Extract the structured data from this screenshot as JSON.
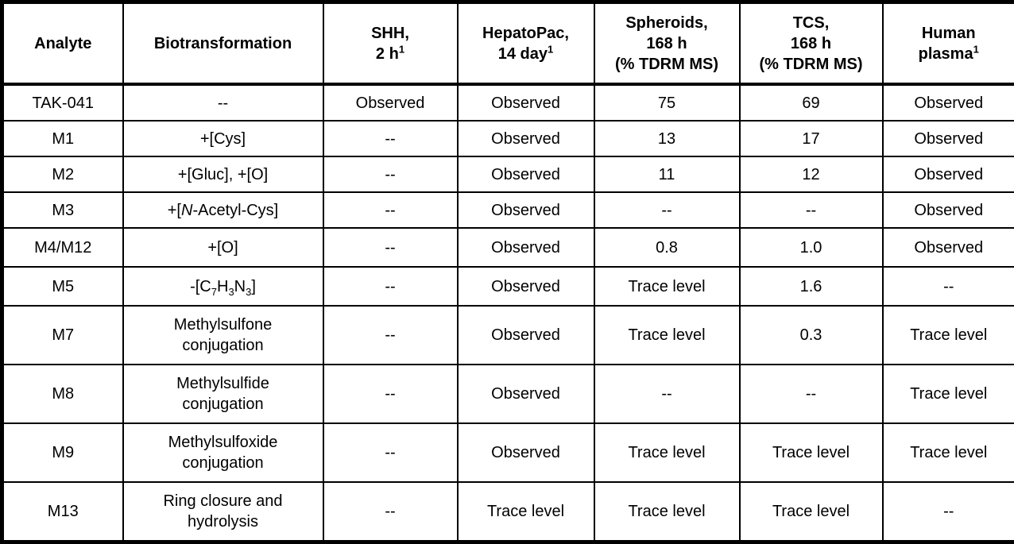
{
  "colors": {
    "background": "#ffffff",
    "border": "#000000",
    "text": "#000000"
  },
  "table": {
    "header": {
      "analyte": "Analyte",
      "biotransformation": "Biotransformation",
      "shh": "SHH,<br>2 h<sup>1</sup>",
      "hepatopac": "HepatoPac,<br>14 day<sup>1</sup>",
      "spheroids": "Spheroids,<br>168 h<br>(% TDRM MS)",
      "tcs": "TCS,<br>168 h<br>(% TDRM MS)",
      "plasma": "Human<br>plasma<sup>1</sup>"
    },
    "rows": [
      {
        "analyte": "TAK-041",
        "biotransformation": "--",
        "shh": "Observed",
        "hepatopac": "Observed",
        "spheroids": "75",
        "tcs": "69",
        "plasma": "Observed"
      },
      {
        "analyte": "M1",
        "biotransformation": "+[Cys]",
        "shh": "--",
        "hepatopac": "Observed",
        "spheroids": "13",
        "tcs": "17",
        "plasma": "Observed"
      },
      {
        "analyte": "M2",
        "biotransformation": "+[Gluc], +[O]",
        "shh": "--",
        "hepatopac": "Observed",
        "spheroids": "11",
        "tcs": "12",
        "plasma": "Observed"
      },
      {
        "analyte": "M3",
        "biotransformation": "+[<i>N</i>-Acetyl-Cys]",
        "shh": "--",
        "hepatopac": "Observed",
        "spheroids": "--",
        "tcs": "--",
        "plasma": "Observed"
      },
      {
        "analyte": "M4/M12",
        "biotransformation": "+[O]",
        "shh": "--",
        "hepatopac": "Observed",
        "spheroids": "0.8",
        "tcs": "1.0",
        "plasma": "Observed"
      },
      {
        "analyte": "M5",
        "biotransformation": "-[C<sub>7</sub>H<sub>3</sub>N<sub>3</sub>]",
        "shh": "--",
        "hepatopac": "Observed",
        "spheroids": "Trace level",
        "tcs": "1.6",
        "plasma": "--"
      },
      {
        "analyte": "M7",
        "biotransformation": "Methylsulfone<br>conjugation",
        "shh": "--",
        "hepatopac": "Observed",
        "spheroids": "Trace level",
        "tcs": "0.3",
        "plasma": "Trace level"
      },
      {
        "analyte": "M8",
        "biotransformation": "Methylsulfide<br>conjugation",
        "shh": "--",
        "hepatopac": "Observed",
        "spheroids": "--",
        "tcs": "--",
        "plasma": "Trace level"
      },
      {
        "analyte": "M9",
        "biotransformation": "Methylsulfoxide<br>conjugation",
        "shh": "--",
        "hepatopac": "Observed",
        "spheroids": "Trace level",
        "tcs": "Trace level",
        "plasma": "Trace level"
      },
      {
        "analyte": "M13",
        "biotransformation": "Ring closure and<br>hydrolysis",
        "shh": "--",
        "hepatopac": "Trace level",
        "spheroids": "Trace level",
        "tcs": "Trace level",
        "plasma": "--"
      }
    ]
  }
}
